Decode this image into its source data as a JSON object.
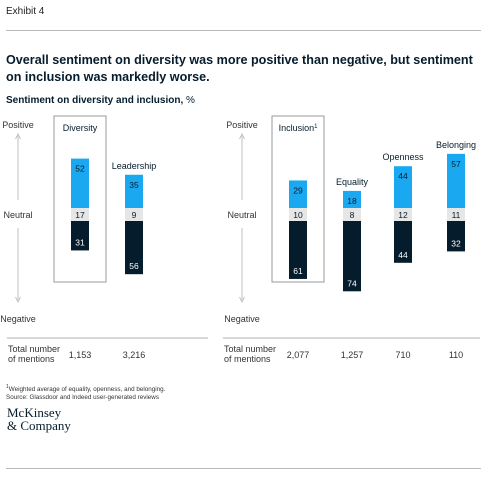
{
  "exhibit_label": "Exhibit 4",
  "headline": "Overall sentiment on diversity was more positive than negative, but sentiment on inclusion was markedly worse.",
  "subtitle": "Sentiment on diversity and inclusion,",
  "subtitle_unit": "%",
  "footnote_line1": "Weighted average of equality, openness, and belonging.",
  "footnote_marker": "1",
  "footnote_line2": "Source: Glassdoor and Indeed user-generated reviews",
  "logo_line1": "McKinsey",
  "logo_line2": "& Company",
  "colors": {
    "positive": "#1aa8f0",
    "neutral": "#e6e6e6",
    "negative": "#051c2c",
    "highlight_box": "#9a9a9a",
    "axis_arrow": "#b0b0b0"
  },
  "chart_data": [
    {
      "type": "bar",
      "stacking": "diverging",
      "axis_labels": {
        "positive": "Positive",
        "neutral": "Neutral",
        "negative": "Negative"
      },
      "total_label": "Total number of mentions",
      "categories": [
        "Diversity",
        "Leadership"
      ],
      "highlighted_category": "Diversity",
      "series": [
        {
          "name": "Positive",
          "values": [
            52,
            35
          ]
        },
        {
          "name": "Neutral",
          "values": [
            17,
            9
          ]
        },
        {
          "name": "Negative",
          "values": [
            31,
            56
          ]
        }
      ],
      "total_mentions": [
        "1,153",
        "3,216"
      ]
    },
    {
      "type": "bar",
      "stacking": "diverging",
      "axis_labels": {
        "positive": "Positive",
        "neutral": "Neutral",
        "negative": "Negative"
      },
      "total_label": "Total number of mentions",
      "categories": [
        "Inclusion",
        "Equality",
        "Openness",
        "Belonging"
      ],
      "category_superscripts": [
        "1",
        "",
        "",
        ""
      ],
      "highlighted_category": "Inclusion",
      "series": [
        {
          "name": "Positive",
          "values": [
            29,
            18,
            44,
            57
          ]
        },
        {
          "name": "Neutral",
          "values": [
            10,
            8,
            12,
            11
          ]
        },
        {
          "name": "Negative",
          "values": [
            61,
            74,
            44,
            32
          ]
        }
      ],
      "total_mentions": [
        "2,077",
        "1,257",
        "710",
        "110"
      ]
    }
  ]
}
